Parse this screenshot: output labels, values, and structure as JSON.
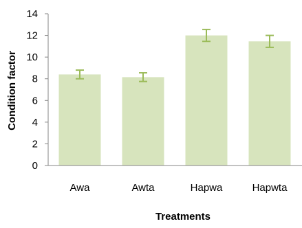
{
  "chart_data": {
    "type": "bar",
    "title": "",
    "xlabel": "Treatments",
    "ylabel": "Condition factor",
    "categories": [
      "Awa",
      "Awta",
      "Hapwa",
      "Hapwta"
    ],
    "values": [
      8.4,
      8.15,
      12.0,
      11.45
    ],
    "error": [
      0.4,
      0.4,
      0.55,
      0.55
    ],
    "ylim": [
      0,
      14
    ],
    "yticks": [
      "0",
      "2",
      "4",
      "6",
      "8",
      "10",
      "12",
      "14"
    ],
    "grid": false,
    "legend": "none",
    "bar_color": "#d7e4bd",
    "error_color": "#9bbb59"
  }
}
